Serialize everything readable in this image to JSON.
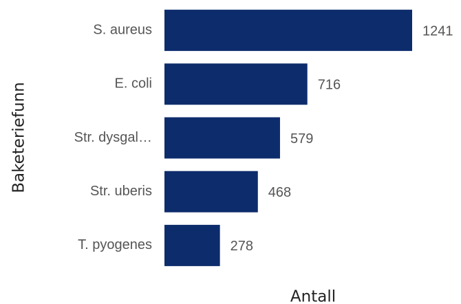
{
  "chart_data": {
    "type": "hbar",
    "categories": [
      "S. aureus",
      "E. coli",
      "Str. dysgal…",
      "Str. uberis",
      "T. pyogenes"
    ],
    "values": [
      1241,
      716,
      579,
      468,
      278
    ],
    "color": "#0d2c6c",
    "xlabel": "Antall",
    "ylabel": "Baketeriefunn",
    "xlim": [
      0,
      1241
    ]
  }
}
